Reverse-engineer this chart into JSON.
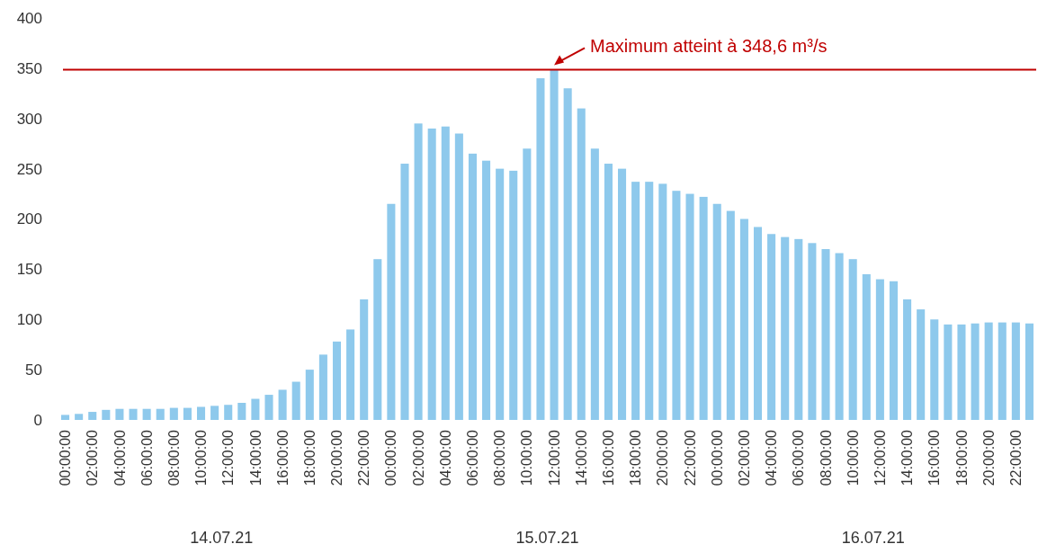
{
  "chart_data": {
    "type": "bar",
    "categories": [
      "00:00:00",
      null,
      "02:00:00",
      null,
      "04:00:00",
      null,
      "06:00:00",
      null,
      "08:00:00",
      null,
      "10:00:00",
      null,
      "12:00:00",
      null,
      "14:00:00",
      null,
      "16:00:00",
      null,
      "18:00:00",
      null,
      "20:00:00",
      null,
      "22:00:00",
      null,
      "00:00:00",
      null,
      "02:00:00",
      null,
      "04:00:00",
      null,
      "06:00:00",
      null,
      "08:00:00",
      null,
      "10:00:00",
      null,
      "12:00:00",
      null,
      "14:00:00",
      null,
      "16:00:00",
      null,
      "18:00:00",
      null,
      "20:00:00",
      null,
      "22:00:00",
      null,
      "00:00:00",
      null,
      "02:00:00",
      null,
      "04:00:00",
      null,
      "06:00:00",
      null,
      "08:00:00",
      null,
      "10:00:00",
      null,
      "12:00:00",
      null,
      "14:00:00",
      null,
      "16:00:00",
      null,
      "18:00:00",
      null,
      "20:00:00",
      null,
      "22:00:00",
      null
    ],
    "values": [
      5,
      6,
      8,
      10,
      11,
      11,
      11,
      11,
      12,
      12,
      13,
      14,
      15,
      17,
      21,
      25,
      30,
      38,
      50,
      65,
      78,
      90,
      120,
      160,
      215,
      255,
      295,
      290,
      292,
      285,
      265,
      258,
      250,
      248,
      270,
      340,
      348.6,
      330,
      310,
      270,
      255,
      250,
      237,
      237,
      235,
      228,
      225,
      222,
      215,
      208,
      200,
      192,
      185,
      182,
      180,
      176,
      170,
      166,
      160,
      145,
      140,
      138,
      120,
      110,
      100,
      95,
      95,
      96,
      97,
      97,
      97,
      96
    ],
    "color": "#8ec9ec",
    "ylim": [
      0,
      400
    ],
    "yticks": [
      0,
      50,
      100,
      150,
      200,
      250,
      300,
      350,
      400
    ],
    "grid": false,
    "ref_lines": [
      {
        "axis": "y",
        "value": 348.6,
        "color": "#c00000"
      }
    ],
    "annotations": [
      "Maximum atteint à 348,6 m³/s",
      "14.07.21",
      "15.07.21",
      "16.07.21"
    ]
  }
}
